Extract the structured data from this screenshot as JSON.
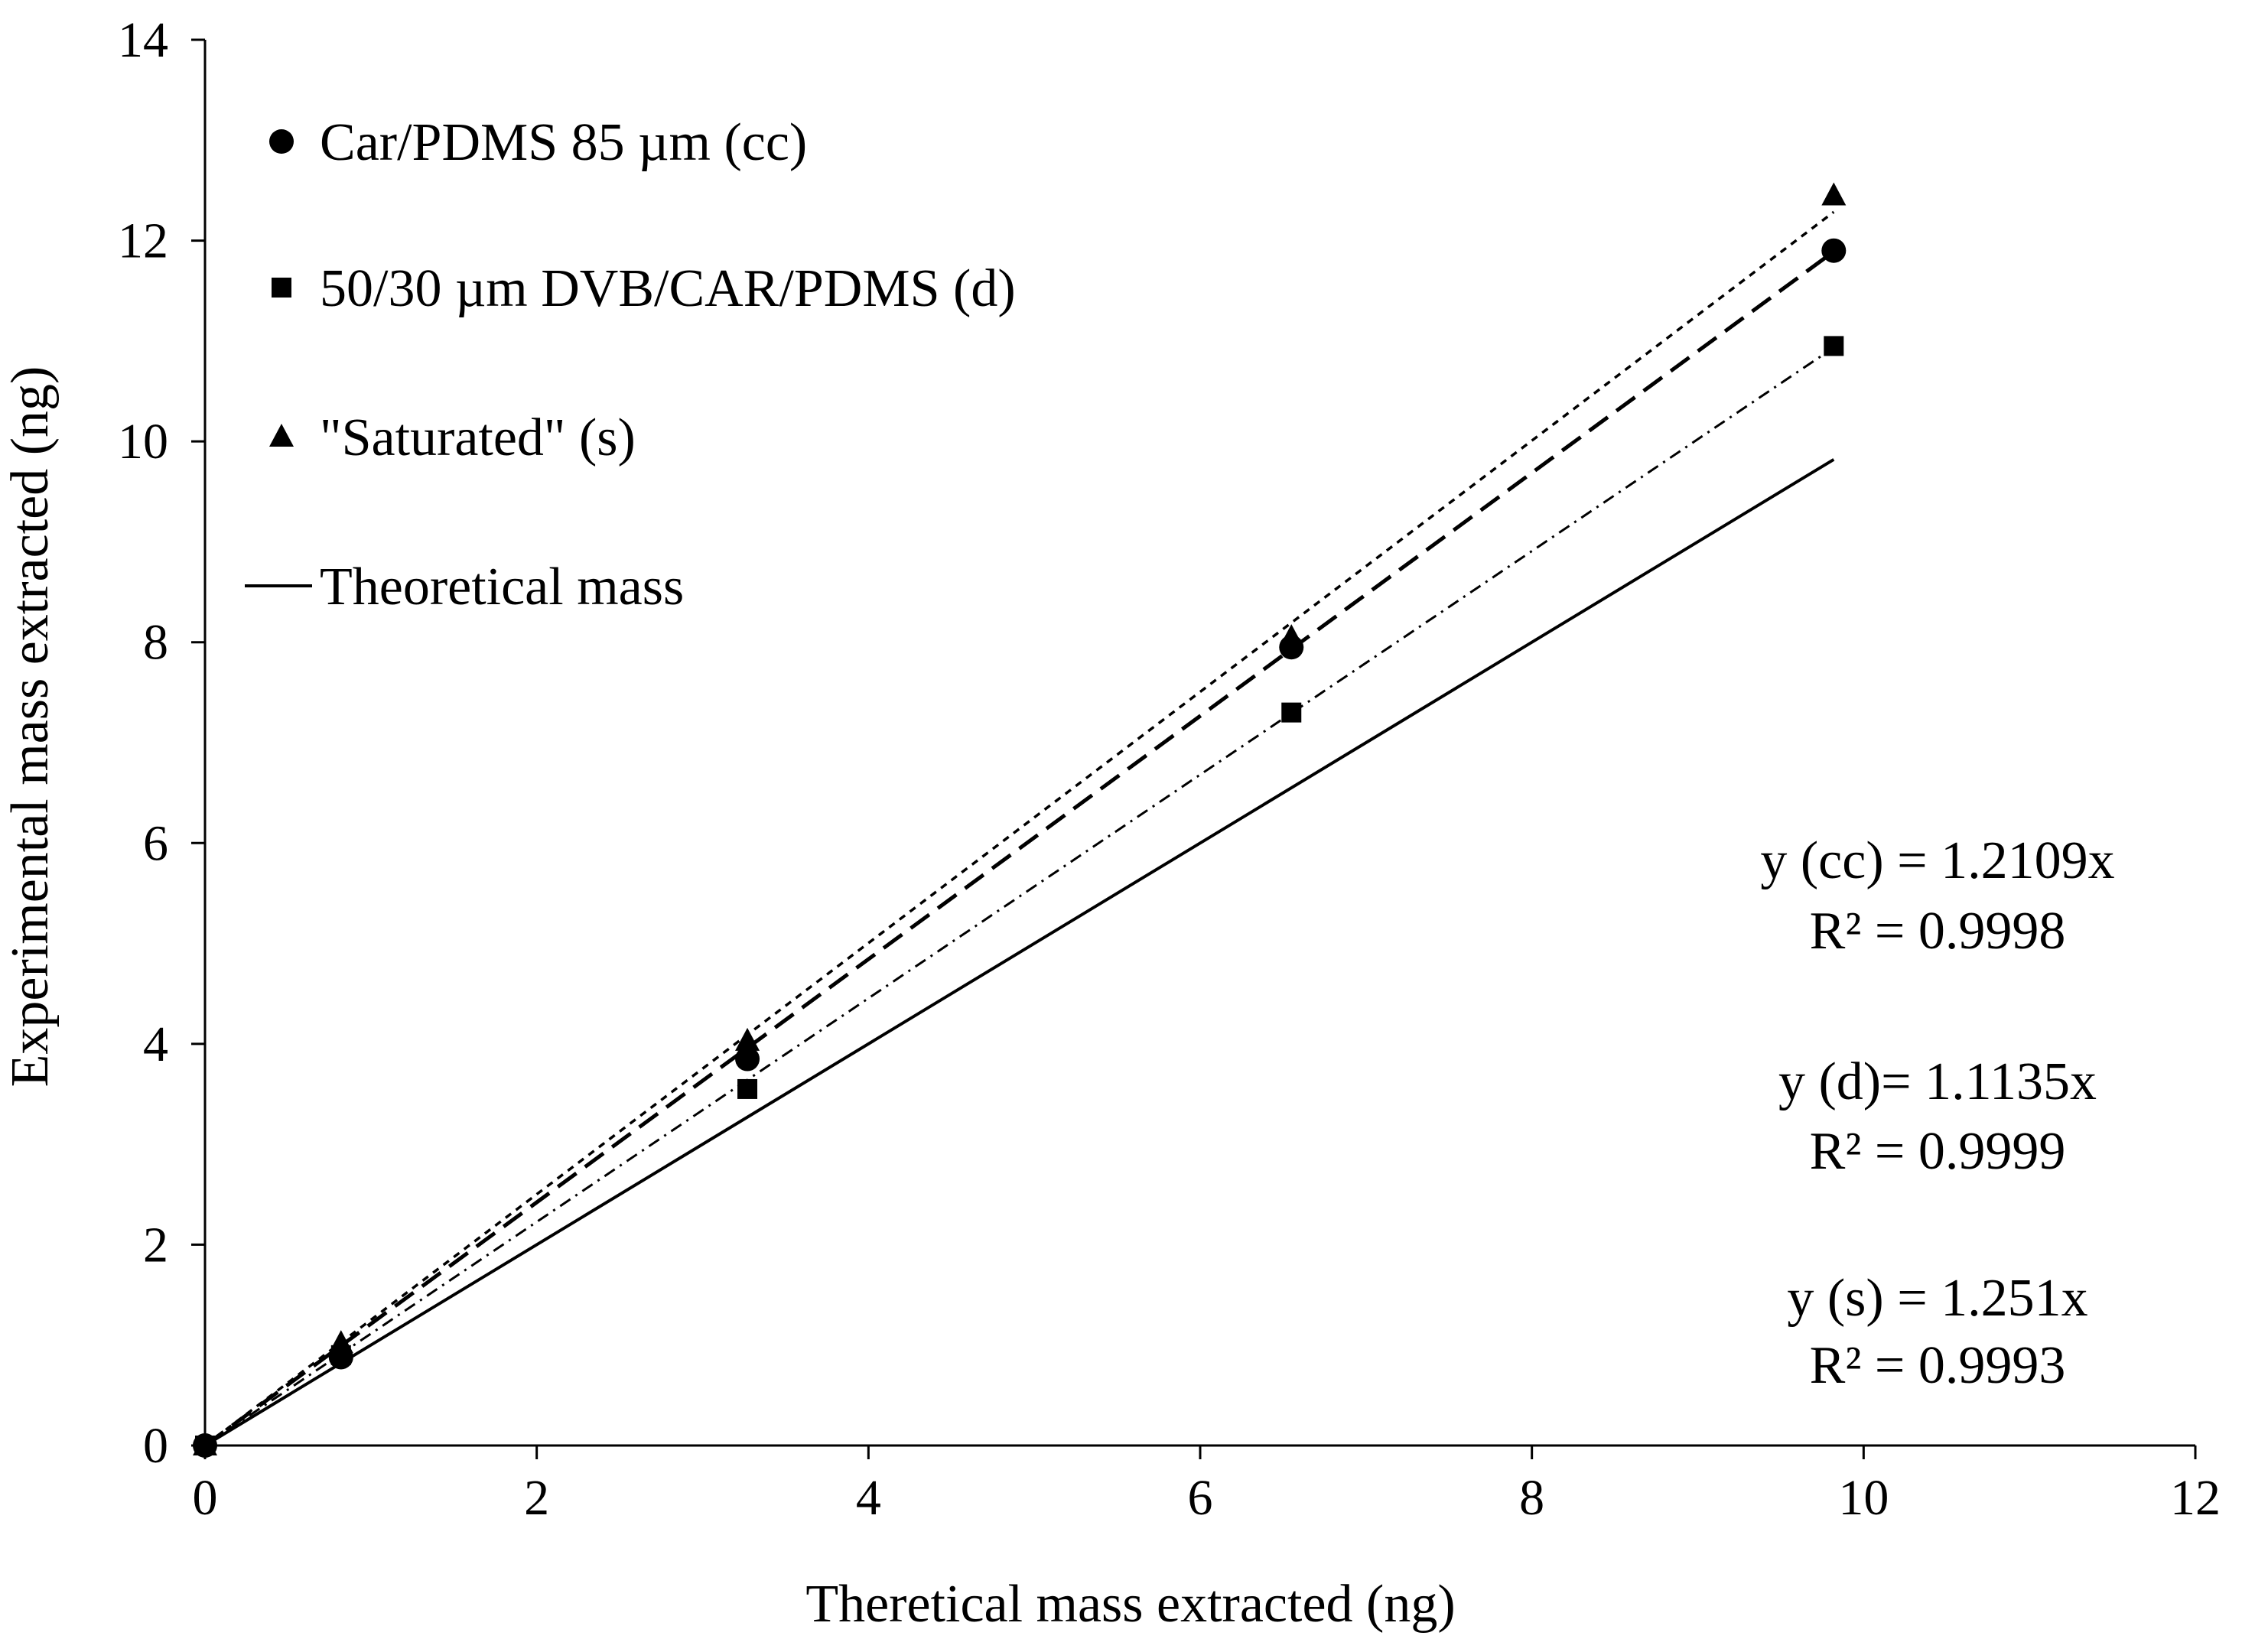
{
  "chart_data": {
    "type": "scatter",
    "title": "",
    "xlabel": "Theretical mass extracted (ng)",
    "ylabel": "Experimental mass extracted (ng)",
    "xlim": [
      0,
      12
    ],
    "ylim": [
      0,
      14
    ],
    "xticks": [
      "0",
      "2",
      "4",
      "6",
      "8",
      "10",
      "12"
    ],
    "yticks": [
      "0",
      "2",
      "4",
      "6",
      "8",
      "10",
      "12",
      "14"
    ],
    "grid": false,
    "legend_position": "top-left",
    "series": [
      {
        "name": "Car/PDMS 85 µm (cc)",
        "marker": "circle",
        "trendline": "long-dash",
        "slope": 1.2109,
        "x": [
          0,
          0.82,
          3.27,
          6.55,
          9.82
        ],
        "y": [
          0,
          0.88,
          3.85,
          7.95,
          11.9
        ]
      },
      {
        "name": "50/30 µm DVB/CAR/PDMS (d)",
        "marker": "square",
        "trendline": "dash-dot",
        "slope": 1.1135,
        "x": [
          0,
          0.82,
          3.27,
          6.55,
          9.82
        ],
        "y": [
          0,
          0.9,
          3.55,
          7.3,
          10.95
        ]
      },
      {
        "name": "\"Saturated\" (s)",
        "marker": "triangle",
        "trendline": "dotted",
        "slope": 1.251,
        "x": [
          0,
          0.82,
          3.27,
          6.55,
          9.82
        ],
        "y": [
          0,
          1.02,
          4.03,
          8.05,
          12.45
        ]
      },
      {
        "name": "Theoretical mass",
        "marker": "none",
        "trendline": "solid",
        "slope": 1.0,
        "x": [
          0,
          9.82
        ],
        "y": [
          0,
          9.82
        ]
      }
    ],
    "annotations": [
      {
        "equation": "y (cc) = 1.2109x",
        "r2": "R² = 0.9998"
      },
      {
        "equation": "y (d)= 1.1135x",
        "r2": "R² = 0.9999"
      },
      {
        "equation": "y (s) = 1.251x",
        "r2": "R² = 0.9993"
      }
    ]
  }
}
